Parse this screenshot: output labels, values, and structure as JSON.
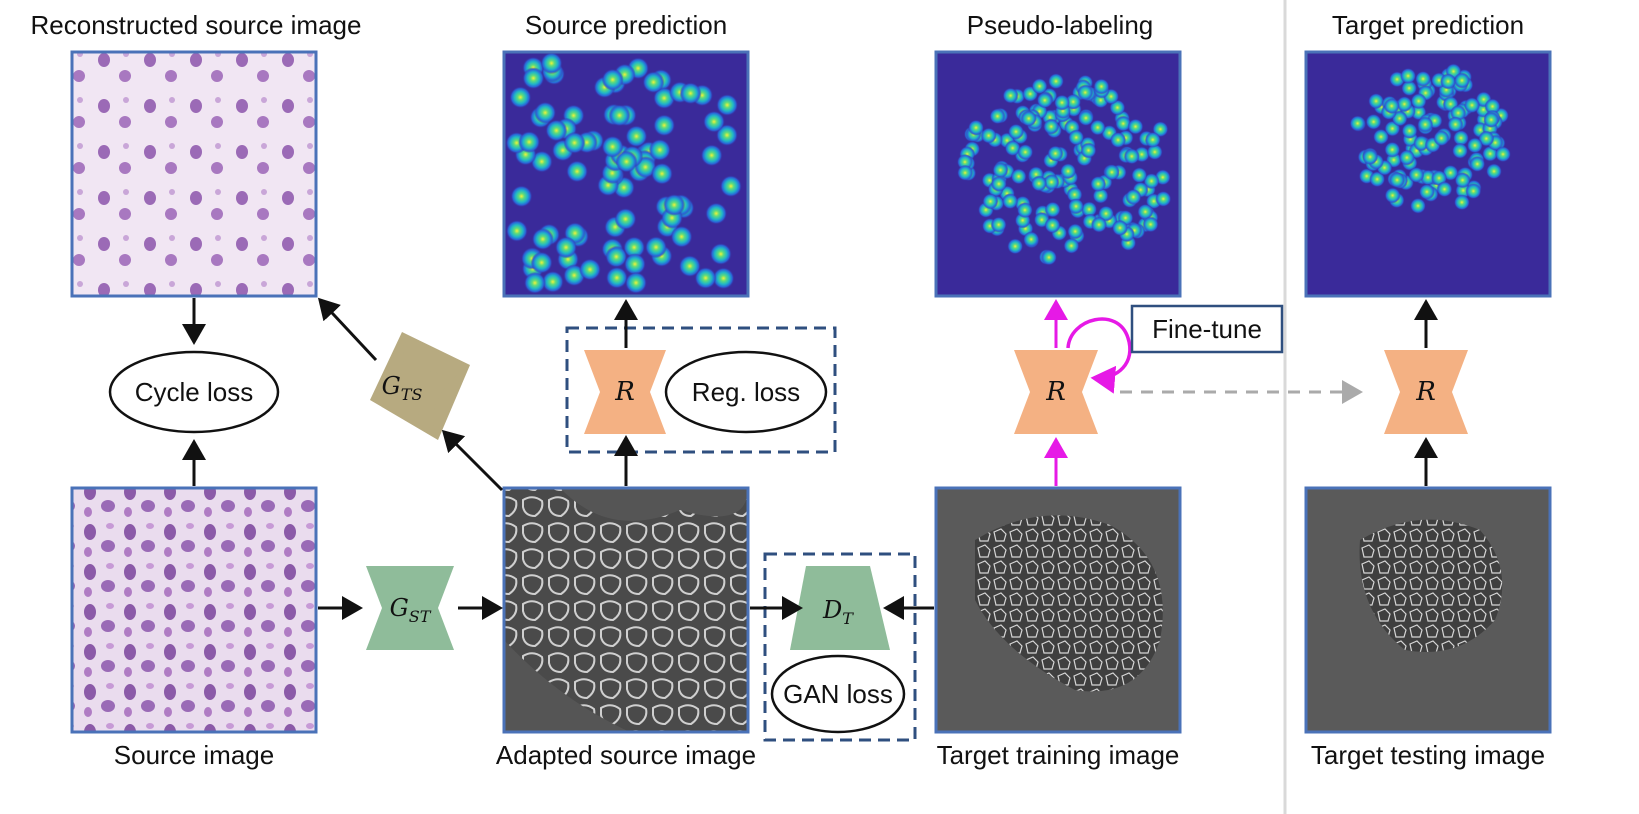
{
  "titles": {
    "reconstructed": "Reconstructed source image",
    "source_prediction": "Source prediction",
    "pseudo_labeling": "Pseudo-labeling",
    "target_prediction": "Target prediction"
  },
  "captions": {
    "source": "Source image",
    "adapted": "Adapted source image",
    "target_training": "Target training image",
    "target_testing": "Target testing image"
  },
  "losses": {
    "cycle": "Cycle loss",
    "reg": "Reg. loss",
    "gan": "GAN loss"
  },
  "finetune": "Fine-tune",
  "networks": {
    "g_ts_main": "G",
    "g_ts_sub": "TS",
    "g_st_main": "G",
    "g_st_sub": "ST",
    "d_t_main": "D",
    "d_t_sub": "T",
    "r1": "R",
    "r2": "R",
    "r3": "R"
  },
  "colors": {
    "frame": "#4a72b8",
    "generator_green": "#8fbc9a",
    "generator_tan": "#b7aa80",
    "regressor_orange": "#f4b183",
    "finetune_magenta": "#e619e6",
    "dashed_box": "#2f4f7f",
    "heatmap_bg": "#3a2a9a",
    "grey_arrow": "#aaaaaa"
  }
}
